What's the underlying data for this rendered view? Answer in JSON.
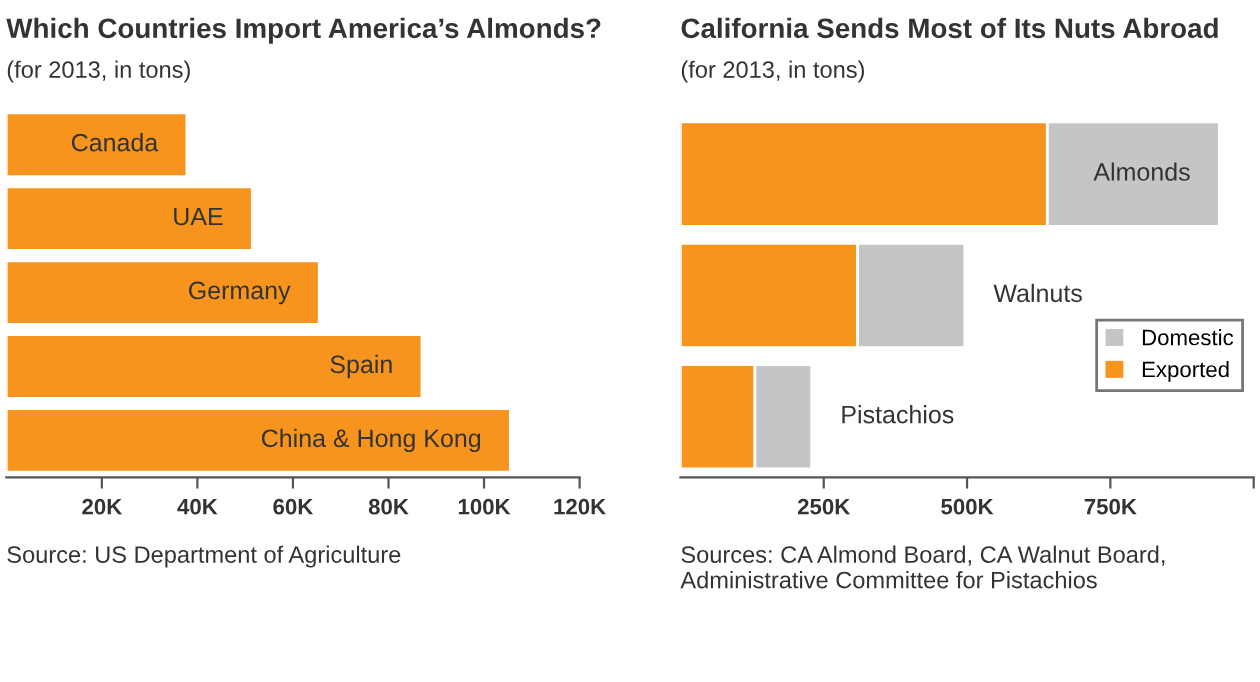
{
  "chart_data": [
    {
      "type": "bar",
      "orientation": "horizontal",
      "title": "Which Countries Import America’s Almonds?",
      "subtitle": "(for 2013, in tons)",
      "categories": [
        "Canada",
        "UAE",
        "Germany",
        "Spain",
        "China & Hong Kong"
      ],
      "values": [
        37800,
        51500,
        65500,
        87000,
        105500
      ],
      "color": "#f7941d",
      "xlim": [
        0,
        120000
      ],
      "xticks": [
        {
          "value": 20000,
          "label": "20K"
        },
        {
          "value": 40000,
          "label": "40K"
        },
        {
          "value": 60000,
          "label": "60K"
        },
        {
          "value": 80000,
          "label": "80K"
        },
        {
          "value": 100000,
          "label": "100K"
        },
        {
          "value": 120000,
          "label": "120K"
        }
      ],
      "grid": false,
      "legend": false,
      "annotations": [
        "Source: US Department of Agriculture"
      ]
    },
    {
      "type": "bar",
      "orientation": "horizontal",
      "stacked": true,
      "title": "California Sends Most of Its Nuts Abroad",
      "subtitle": "(for 2013, in tons)",
      "categories": [
        "Almonds",
        "Walnuts",
        "Pistachios"
      ],
      "series": [
        {
          "name": "Exported",
          "color": "#f7941d",
          "values": [
            640000,
            309000,
            130000
          ]
        },
        {
          "name": "Domestic",
          "color": "#c4c5c7",
          "values": [
            300000,
            187000,
            99000
          ]
        }
      ],
      "xlim": [
        0,
        1000000
      ],
      "xticks": [
        {
          "value": 250000,
          "label": "250K"
        },
        {
          "value": 500000,
          "label": "500K"
        },
        {
          "value": 750000,
          "label": "750K"
        },
        {
          "value": 1000000,
          "label": null
        }
      ],
      "grid": false,
      "legend": "bottom right",
      "annotations": [
        "Sources: CA Almond Board, CA Walnut Board, Administrative Committee for Pistachios"
      ]
    }
  ]
}
